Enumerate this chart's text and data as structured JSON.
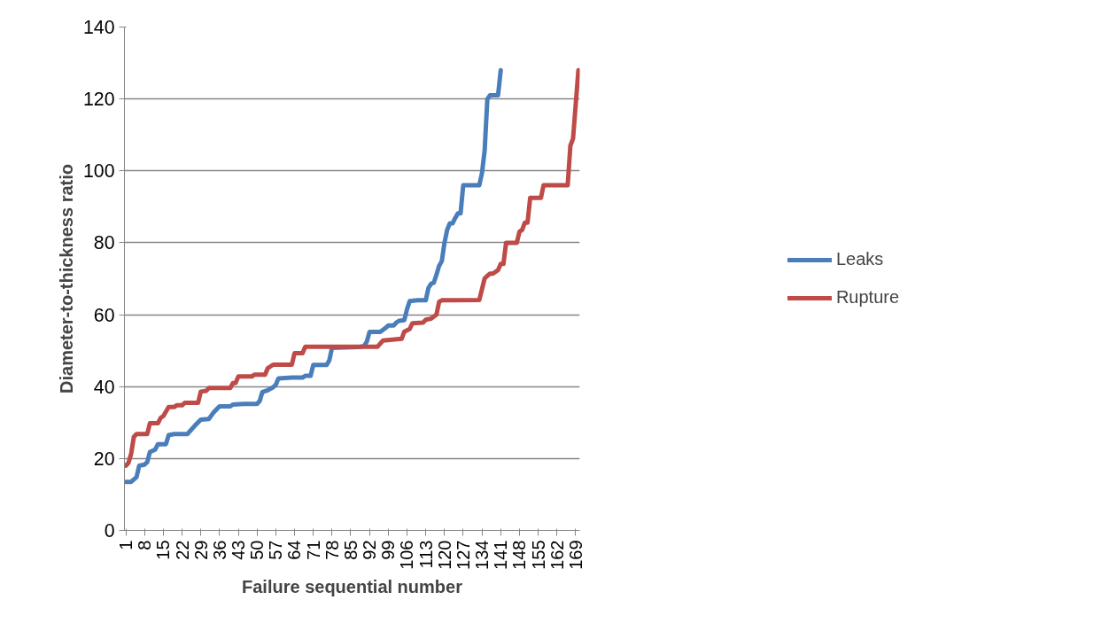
{
  "chart_data": {
    "type": "line",
    "xlabel": "Failure sequential number",
    "ylabel": "Diameter-to-thickness ratio",
    "xlim": [
      0.5,
      170.5
    ],
    "xticks": [
      1,
      8,
      15,
      22,
      29,
      36,
      43,
      50,
      57,
      64,
      71,
      78,
      85,
      92,
      99,
      106,
      113,
      120,
      127,
      134,
      141,
      148,
      155,
      162,
      169
    ],
    "ylim": [
      0,
      140
    ],
    "yticks": [
      0,
      20,
      40,
      60,
      80,
      100,
      120,
      140
    ],
    "grid": "y",
    "legend": "right",
    "marker": "none",
    "line_style": "solid",
    "series": [
      {
        "name": "Leaks",
        "color": "#4a7ebb",
        "x": [
          1,
          3,
          5,
          6,
          8,
          9,
          10,
          12,
          13,
          16,
          17,
          19,
          24,
          27,
          29,
          32,
          34,
          36,
          40,
          41,
          45,
          50,
          51,
          52,
          54,
          56,
          57,
          58,
          63,
          67,
          68,
          70,
          71,
          76,
          77,
          78,
          88,
          90,
          91,
          92,
          96,
          98,
          99,
          101,
          102,
          103,
          105,
          106,
          107,
          110,
          113,
          114,
          115,
          116,
          117,
          118,
          119,
          120,
          121,
          122,
          123,
          124,
          125,
          126,
          127,
          133,
          134,
          135,
          136,
          137,
          140,
          141
        ],
        "values": [
          13.5,
          13.5,
          14.8,
          18,
          18.3,
          19,
          21.8,
          22.5,
          24,
          24,
          26.5,
          26.8,
          26.8,
          29.3,
          30.8,
          31,
          33,
          34.5,
          34.5,
          35,
          35.2,
          35.2,
          36,
          38.5,
          39,
          39.8,
          40.5,
          42.3,
          42.5,
          42.5,
          43,
          43,
          46,
          46,
          47.3,
          50.8,
          51,
          51.3,
          52.5,
          55.2,
          55.2,
          56.3,
          57,
          57,
          57.8,
          58.3,
          58.5,
          61.5,
          63.8,
          64,
          64,
          67.4,
          68.6,
          68.9,
          71.1,
          73.6,
          74.9,
          80,
          83.6,
          85.4,
          85.4,
          86.9,
          88.2,
          88.2,
          96,
          96,
          99.4,
          105.7,
          120,
          121,
          121,
          128
        ]
      },
      {
        "name": "Rupture",
        "color": "#be4b48",
        "x": [
          1,
          2,
          3,
          4,
          5,
          9,
          10,
          13,
          14,
          15,
          17,
          19,
          20,
          22,
          23,
          28,
          29,
          31,
          32,
          40,
          41,
          42,
          43,
          48,
          49,
          53,
          54,
          56,
          63,
          64,
          67,
          68,
          95,
          97,
          104,
          105,
          107,
          108,
          112,
          113,
          115,
          117,
          118,
          119,
          133,
          135,
          136,
          137,
          138,
          140,
          141,
          142,
          143,
          147,
          148,
          149,
          150,
          151,
          152,
          156,
          157,
          166,
          167,
          168,
          170
        ],
        "values": [
          18,
          18.8,
          21.3,
          26,
          26.8,
          26.8,
          29.8,
          29.8,
          31.3,
          31.8,
          34.3,
          34.3,
          34.8,
          34.8,
          35.5,
          35.5,
          38.6,
          38.8,
          39.6,
          39.6,
          41,
          41,
          42.8,
          42.8,
          43.3,
          43.3,
          45.1,
          46.1,
          46.1,
          49.3,
          49.3,
          51.1,
          51.1,
          52.8,
          53.3,
          55.3,
          56,
          57.6,
          57.8,
          58.6,
          58.9,
          60,
          63.6,
          64,
          64.1,
          70.1,
          70.8,
          71.4,
          71.4,
          72.4,
          74.1,
          74.1,
          80,
          80,
          83.1,
          83.6,
          85.6,
          85.6,
          92.5,
          92.5,
          96,
          96,
          107,
          109,
          128
        ]
      }
    ]
  }
}
